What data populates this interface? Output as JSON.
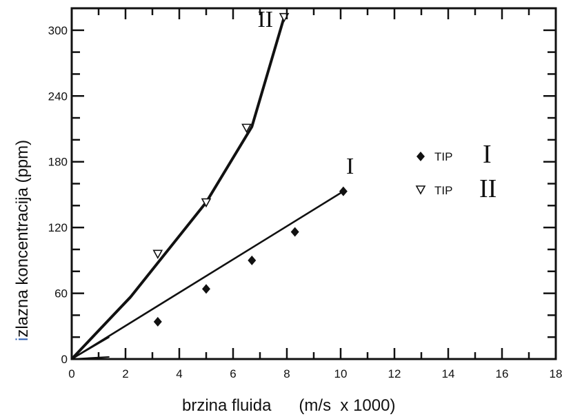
{
  "chart_data": {
    "type": "line",
    "title": "",
    "xlabel": "brzina fluida",
    "xlabel_unit": "(m/s  x 1000)",
    "ylabel_first_letter": "i",
    "ylabel_rest": "zlazna koncentracija (ppm)",
    "ylabel_first_letter_color": "#2f5fb3",
    "xlim": [
      0,
      18
    ],
    "ylim": [
      0,
      320
    ],
    "x_ticks": [
      0,
      2,
      4,
      6,
      8,
      10,
      12,
      14,
      16,
      18
    ],
    "y_ticks": [
      0,
      60,
      120,
      180,
      240,
      300
    ],
    "grid": false,
    "legend_position": "right",
    "series": [
      {
        "name": "TIP",
        "roman": "I",
        "marker": "diamond-filled",
        "color": "#111111",
        "x": [
          3.2,
          5.0,
          6.7,
          8.3,
          10.1
        ],
        "y": [
          34,
          64,
          90,
          116,
          153
        ],
        "fit_x": [
          0,
          10.1
        ],
        "fit_y": [
          0,
          153
        ],
        "curve_label": "I",
        "curve_label_at": [
          10.35,
          169
        ]
      },
      {
        "name": "TIP",
        "roman": "II",
        "marker": "triangle-down-open",
        "color": "#111111",
        "x": [
          3.2,
          5.0,
          6.5,
          7.9
        ],
        "y": [
          96,
          143,
          211,
          312
        ],
        "fit_x": [
          0,
          2.2,
          5.0,
          6.7,
          7.9
        ],
        "fit_y": [
          0,
          57,
          143,
          212,
          312
        ],
        "curve_label": "II",
        "curve_label_at": [
          7.2,
          303
        ]
      }
    ]
  }
}
